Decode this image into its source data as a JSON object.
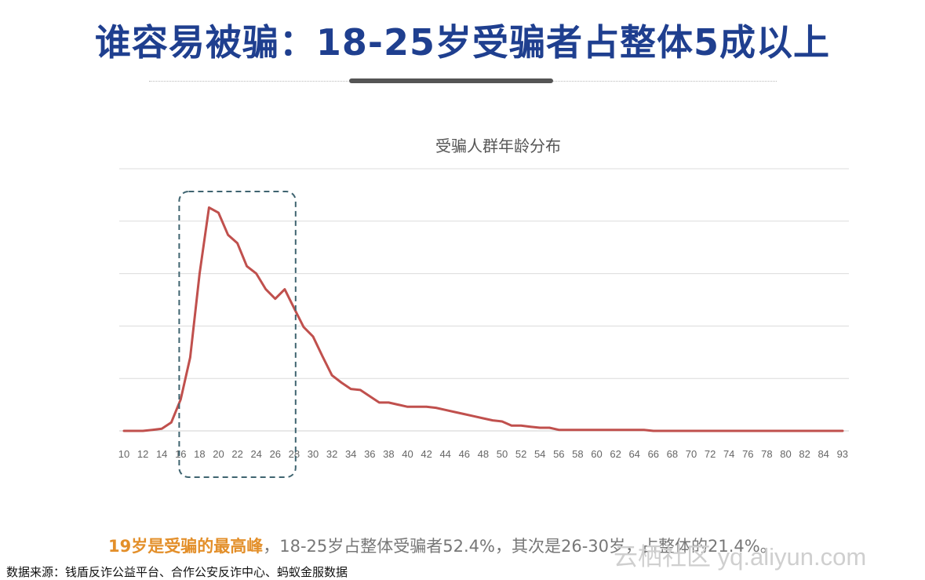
{
  "slide": {
    "title": "谁容易被骗：18-25岁受骗者占整体5成以上"
  },
  "caption": {
    "highlight": "19岁是受骗的最高峰",
    "rest": "，18-25岁占整体受骗者52.4%，其次是26-30岁，占整体的21.4%。"
  },
  "source": "数据来源：钱盾反诈公益平台、合作公安反诈中心、蚂蚁金服数据",
  "watermark": "云栖社区 yq.aliyun.com",
  "colors": {
    "title": "#1f3f8f",
    "line": "#c0504d",
    "highlight_box": "#3f6470",
    "caption_highlight": "#e38f2a"
  },
  "chart_data": {
    "type": "line",
    "title": "受骗人群年龄分布",
    "xlabel": "",
    "ylabel": "",
    "x_tick_labels": [
      "10",
      "12",
      "14",
      "16",
      "18",
      "20",
      "22",
      "24",
      "26",
      "28",
      "30",
      "32",
      "34",
      "36",
      "38",
      "40",
      "42",
      "44",
      "46",
      "48",
      "50",
      "52",
      "54",
      "56",
      "58",
      "60",
      "62",
      "64",
      "66",
      "68",
      "70",
      "72",
      "74",
      "76",
      "78",
      "80",
      "82",
      "84",
      "93"
    ],
    "x": [
      10,
      11,
      12,
      13,
      14,
      15,
      16,
      17,
      18,
      19,
      20,
      21,
      22,
      23,
      24,
      25,
      26,
      27,
      28,
      29,
      30,
      31,
      32,
      33,
      34,
      35,
      36,
      37,
      38,
      39,
      40,
      41,
      42,
      43,
      44,
      45,
      46,
      47,
      48,
      49,
      50,
      51,
      52,
      53,
      54,
      55,
      56,
      57,
      58,
      59,
      60,
      61,
      62,
      63,
      64,
      65,
      66,
      67,
      68,
      69,
      70,
      71,
      72,
      73,
      74,
      75,
      76,
      77,
      78,
      79,
      80,
      81,
      82,
      83,
      84,
      85,
      93
    ],
    "values": [
      0.0,
      0.0,
      0.0,
      0.1,
      0.2,
      0.8,
      3.0,
      7.0,
      15.0,
      21.3,
      20.8,
      18.7,
      17.9,
      15.7,
      15.0,
      13.5,
      12.6,
      13.5,
      11.7,
      9.9,
      9.0,
      7.1,
      5.3,
      4.6,
      4.0,
      3.9,
      3.3,
      2.7,
      2.7,
      2.5,
      2.3,
      2.3,
      2.3,
      2.2,
      2.0,
      1.8,
      1.6,
      1.4,
      1.2,
      1.0,
      0.9,
      0.5,
      0.5,
      0.4,
      0.3,
      0.3,
      0.1,
      0.1,
      0.1,
      0.1,
      0.1,
      0.1,
      0.1,
      0.1,
      0.1,
      0.1,
      0.0,
      0.0,
      0.0,
      0.0,
      0.0,
      0.0,
      0.0,
      0.0,
      0.0,
      0.0,
      0.0,
      0.0,
      0.0,
      0.0,
      0.0,
      0.0,
      0.0,
      0.0,
      0.0,
      0.0,
      0.0
    ],
    "ylim": [
      0,
      25
    ],
    "y_gridlines": [
      5,
      10,
      15,
      20,
      25
    ],
    "y_tick_labels_shown": false,
    "grid": true,
    "highlight_range": [
      18,
      26
    ]
  }
}
